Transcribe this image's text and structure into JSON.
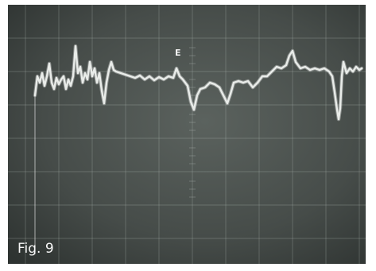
{
  "photo": {
    "marker": "E",
    "caption": "Fig. 9"
  },
  "colors": {
    "screen": "#3c423f",
    "screen_light": "#5b625e",
    "trace": "#e9ece9",
    "grid": "#9aa39e",
    "border": "#ffffff"
  }
}
